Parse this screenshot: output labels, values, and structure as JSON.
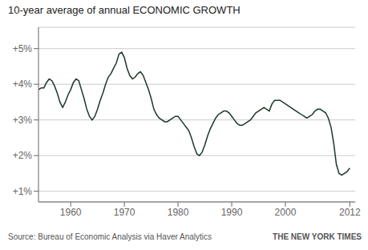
{
  "chart_data": {
    "type": "line",
    "title": "10-year average of annual ECONOMIC GROWTH",
    "annotations": [
      "Source: Bureau of Economic Analysis via Haver Analytics",
      "THE NEW YORK TIMES"
    ],
    "color": "#1c3829",
    "grid": true,
    "xlim": [
      1954,
      2013
    ],
    "xticks": [
      1960,
      1970,
      1980,
      1990,
      2000,
      2012
    ],
    "ylim": [
      0.7,
      5.6
    ],
    "yticks": [
      {
        "value": 1.0,
        "label": "+1%"
      },
      {
        "value": 2.0,
        "label": "+2%"
      },
      {
        "value": 3.0,
        "label": "+3%"
      },
      {
        "value": 4.0,
        "label": "+4%"
      },
      {
        "value": 5.0,
        "label": "+5%"
      }
    ],
    "x": [
      1954.0,
      1954.5,
      1955.0,
      1955.5,
      1956.0,
      1956.5,
      1957.0,
      1957.5,
      1958.0,
      1958.5,
      1959.0,
      1959.5,
      1960.0,
      1960.5,
      1961.0,
      1961.5,
      1962.0,
      1962.5,
      1963.0,
      1963.5,
      1964.0,
      1964.5,
      1965.0,
      1965.5,
      1966.0,
      1966.5,
      1967.0,
      1967.5,
      1968.0,
      1968.5,
      1969.0,
      1969.5,
      1970.0,
      1970.5,
      1971.0,
      1971.5,
      1972.0,
      1972.5,
      1973.0,
      1973.5,
      1974.0,
      1974.5,
      1975.0,
      1975.5,
      1976.0,
      1976.5,
      1977.0,
      1977.5,
      1978.0,
      1978.5,
      1979.0,
      1979.5,
      1980.0,
      1980.5,
      1981.0,
      1981.5,
      1982.0,
      1982.5,
      1983.0,
      1983.5,
      1984.0,
      1984.5,
      1985.0,
      1985.5,
      1986.0,
      1986.5,
      1987.0,
      1987.5,
      1988.0,
      1988.5,
      1989.0,
      1989.5,
      1990.0,
      1990.5,
      1991.0,
      1991.5,
      1992.0,
      1992.5,
      1993.0,
      1993.5,
      1994.0,
      1994.5,
      1995.0,
      1995.5,
      1996.0,
      1996.5,
      1997.0,
      1997.5,
      1998.0,
      1998.5,
      1999.0,
      1999.5,
      2000.0,
      2000.5,
      2001.0,
      2001.5,
      2002.0,
      2002.5,
      2003.0,
      2003.5,
      2004.0,
      2004.5,
      2005.0,
      2005.5,
      2006.0,
      2006.5,
      2007.0,
      2007.5,
      2008.0,
      2008.5,
      2009.0,
      2009.5,
      2010.0,
      2010.5,
      2011.0,
      2011.5,
      2012.0
    ],
    "values": [
      3.85,
      3.9,
      3.9,
      4.05,
      4.15,
      4.1,
      3.95,
      3.75,
      3.5,
      3.35,
      3.5,
      3.7,
      3.85,
      4.05,
      4.15,
      4.1,
      3.85,
      3.6,
      3.3,
      3.1,
      3.0,
      3.1,
      3.3,
      3.55,
      3.75,
      4.0,
      4.2,
      4.3,
      4.45,
      4.6,
      4.85,
      4.9,
      4.75,
      4.45,
      4.25,
      4.15,
      4.2,
      4.3,
      4.35,
      4.25,
      4.05,
      3.85,
      3.6,
      3.3,
      3.15,
      3.05,
      3.0,
      2.95,
      2.95,
      3.0,
      3.05,
      3.1,
      3.1,
      3.0,
      2.9,
      2.8,
      2.7,
      2.5,
      2.25,
      2.05,
      2.0,
      2.1,
      2.3,
      2.55,
      2.75,
      2.9,
      3.05,
      3.15,
      3.2,
      3.25,
      3.25,
      3.2,
      3.1,
      3.0,
      2.9,
      2.85,
      2.85,
      2.9,
      2.95,
      3.0,
      3.1,
      3.2,
      3.25,
      3.3,
      3.35,
      3.3,
      3.25,
      3.45,
      3.55,
      3.55,
      3.55,
      3.5,
      3.45,
      3.4,
      3.35,
      3.3,
      3.25,
      3.2,
      3.15,
      3.1,
      3.05,
      3.1,
      3.15,
      3.25,
      3.3,
      3.3,
      3.25,
      3.2,
      3.05,
      2.8,
      2.35,
      1.75,
      1.5,
      1.45,
      1.5,
      1.55,
      1.65
    ]
  }
}
